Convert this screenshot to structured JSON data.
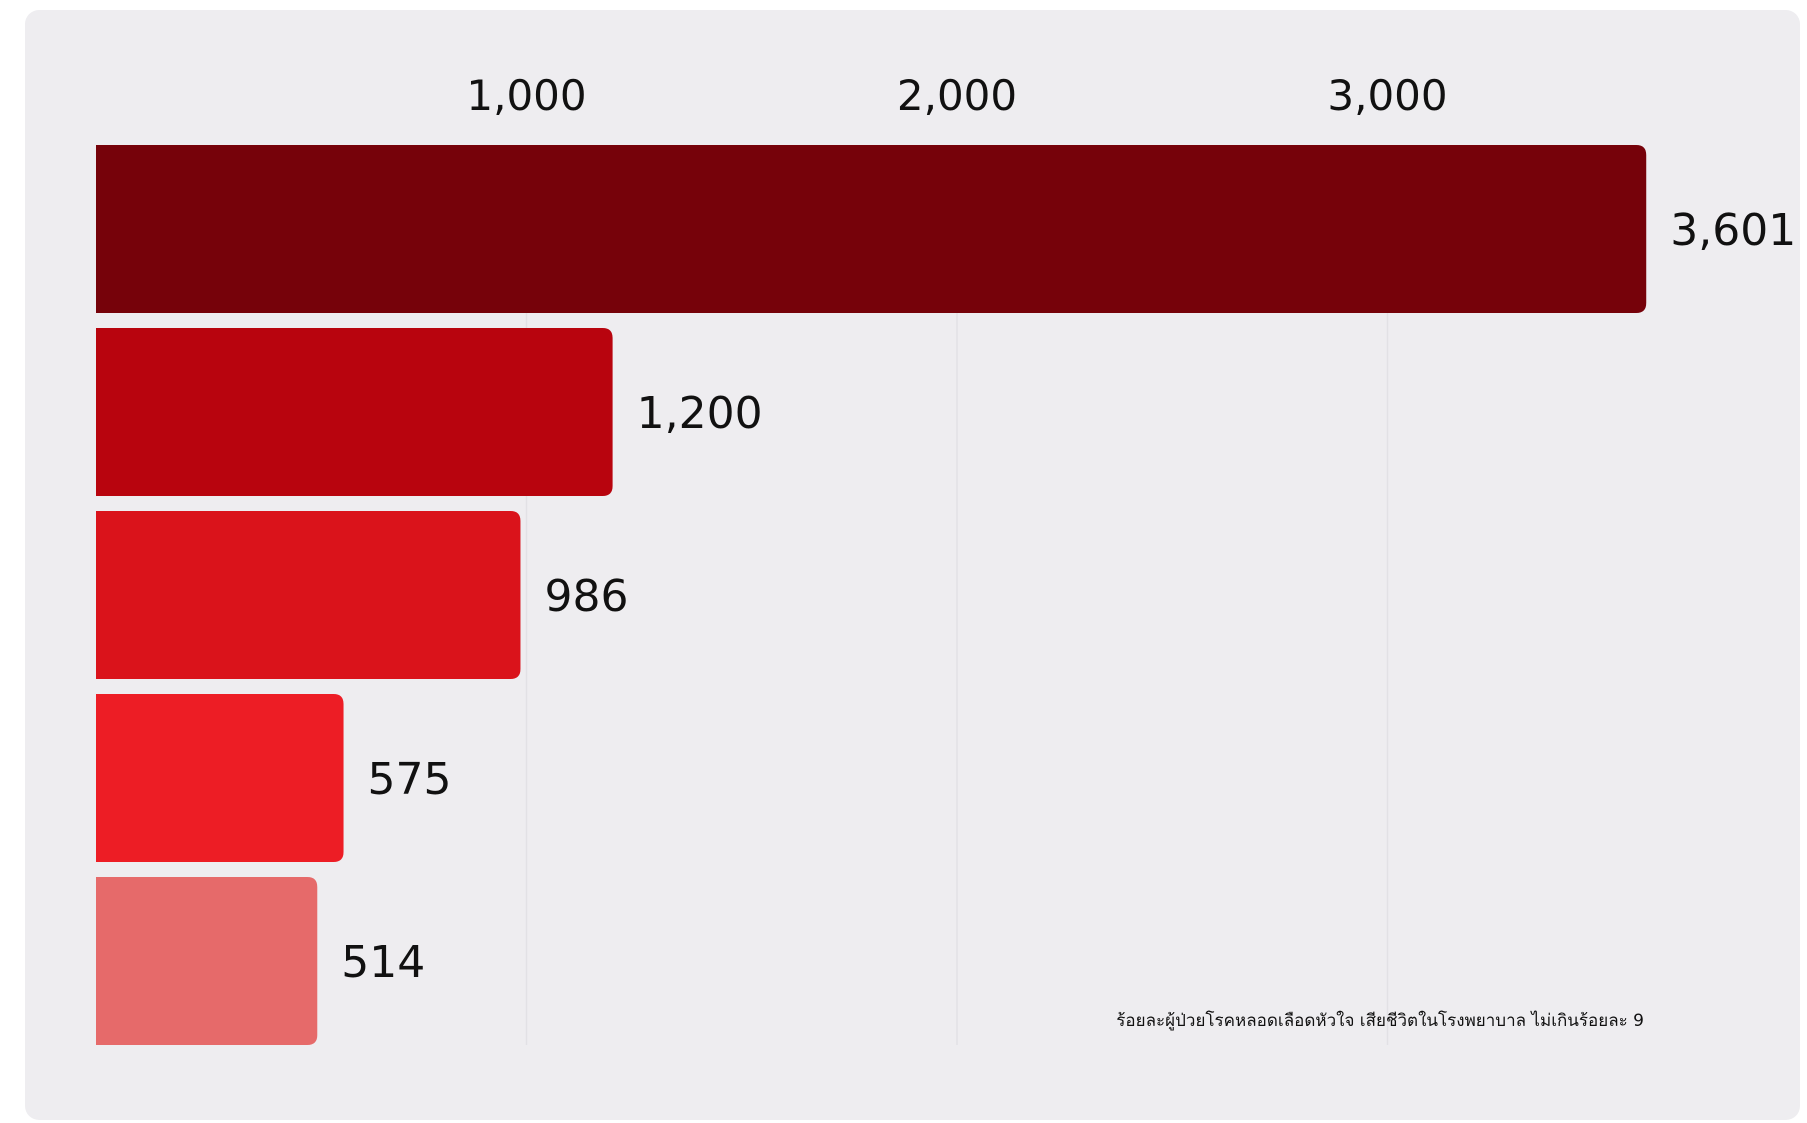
{
  "chart_data": {
    "type": "bar",
    "orientation": "horizontal",
    "values": [
      3601,
      1200,
      986,
      575,
      514
    ],
    "value_labels": [
      "3,601",
      "1,200",
      "986",
      "575",
      "514"
    ],
    "bar_colors": [
      "#76020a",
      "#b8040e",
      "#da131b",
      "#ed1d25",
      "#e66a6a"
    ],
    "x_ticks": [
      {
        "value": 1000,
        "label": "1,000"
      },
      {
        "value": 2000,
        "label": "2,000"
      },
      {
        "value": 3000,
        "label": "3,000"
      }
    ],
    "xlim": [
      0,
      3601
    ],
    "xaxis_position": "top",
    "grid": true,
    "annotation": "ร้อยละผู้ป่วยโรคหลอดเลือดหัวใจ เสียชีวิตในโรงพยาบาล ไม่เกินร้อยละ 9"
  }
}
